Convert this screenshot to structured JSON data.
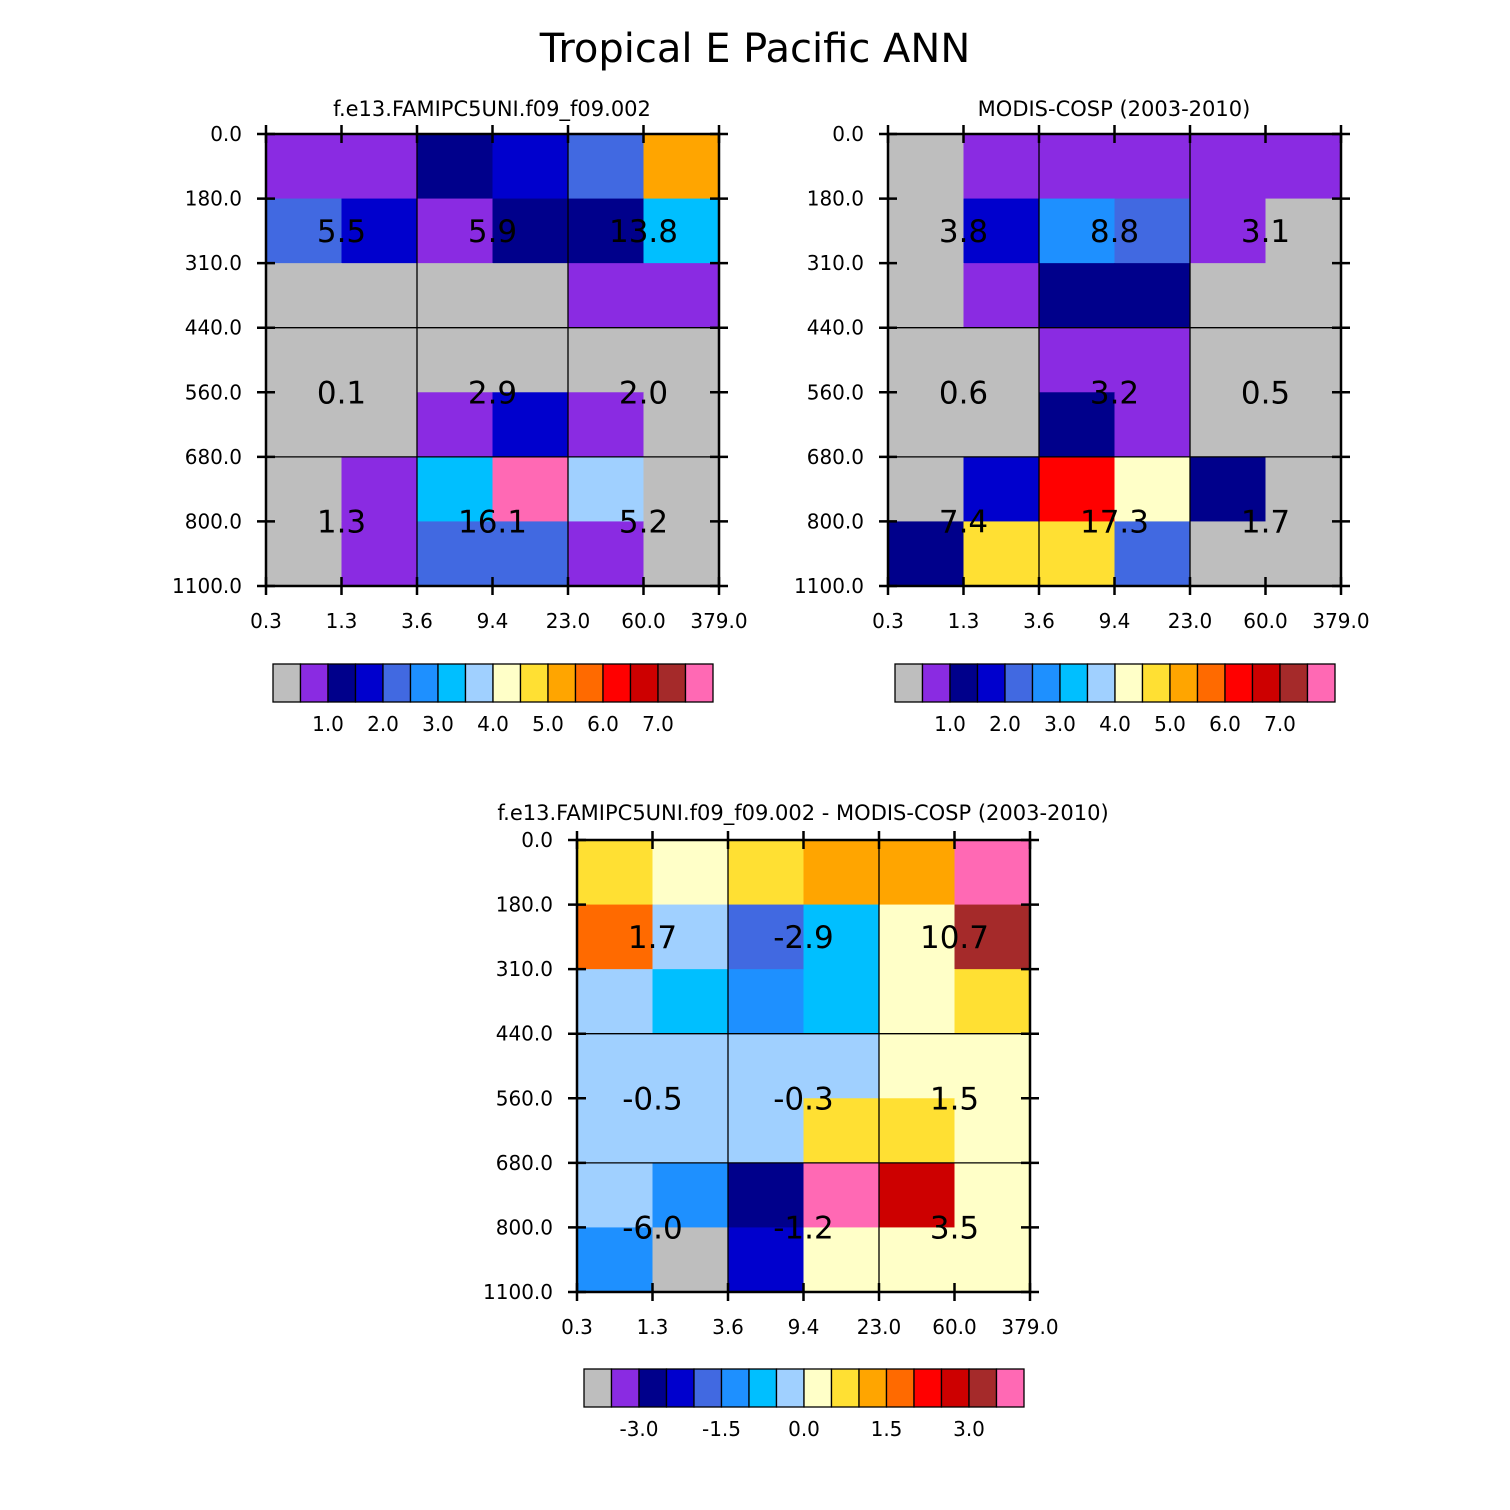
{
  "page_title": "Tropical E Pacific ANN",
  "tau_labels": [
    "0.3",
    "1.3",
    "3.6",
    "9.4",
    "23.0",
    "60.0",
    "379.0"
  ],
  "ctp_labels": [
    "0.0",
    "180.0",
    "310.0",
    "440.0",
    "560.0",
    "680.0",
    "800.0",
    "1100.0"
  ],
  "palette": [
    "#bebebe",
    "#8a2be2",
    "#00008b",
    "#0000cd",
    "#4169e1",
    "#1e90ff",
    "#00bfff",
    "#a0d0ff",
    "#ffffc8",
    "#ffe033",
    "#ffa500",
    "#ff6a00",
    "#ff0000",
    "#cd0000",
    "#a52a2a",
    "#ff69b4"
  ],
  "chart_data": [
    {
      "type": "heatmap",
      "title": "f.e13.FAMIPC5UNI.f09_f09.002",
      "xlabel": "",
      "ylabel": "",
      "colorbar_labels": [
        "1.0",
        "2.0",
        "3.0",
        "4.0",
        "5.0",
        "6.0",
        "7.0"
      ],
      "cells": [
        [
          1,
          1,
          2,
          3,
          4,
          10
        ],
        [
          4,
          3,
          1,
          2,
          2,
          6
        ],
        [
          0,
          0,
          0,
          0,
          1,
          1
        ],
        [
          0,
          0,
          0,
          0,
          0,
          0
        ],
        [
          0,
          0,
          1,
          3,
          1,
          0
        ],
        [
          0,
          1,
          6,
          15,
          7,
          0
        ],
        [
          0,
          1,
          4,
          4,
          1,
          0
        ]
      ],
      "annotations": [
        [
          "5.5",
          "5.9",
          "13.8"
        ],
        [
          "0.1",
          "2.9",
          "2.0"
        ],
        [
          "1.3",
          "16.1",
          "5.2"
        ]
      ]
    },
    {
      "type": "heatmap",
      "title": "MODIS-COSP (2003-2010)",
      "xlabel": "",
      "ylabel": "",
      "colorbar_labels": [
        "1.0",
        "2.0",
        "3.0",
        "4.0",
        "5.0",
        "6.0",
        "7.0"
      ],
      "cells": [
        [
          0,
          1,
          1,
          1,
          1,
          1
        ],
        [
          0,
          3,
          5,
          4,
          1,
          0
        ],
        [
          0,
          1,
          2,
          2,
          0,
          0
        ],
        [
          0,
          0,
          1,
          1,
          0,
          0
        ],
        [
          0,
          0,
          2,
          1,
          0,
          0
        ],
        [
          0,
          3,
          12,
          8,
          2,
          0
        ],
        [
          2,
          9,
          9,
          4,
          0,
          0
        ]
      ],
      "annotations": [
        [
          "3.8",
          "8.8",
          "3.1"
        ],
        [
          "0.6",
          "3.2",
          "0.5"
        ],
        [
          "7.4",
          "17.3",
          "1.7"
        ]
      ]
    },
    {
      "type": "heatmap",
      "title": "f.e13.FAMIPC5UNI.f09_f09.002 - MODIS-COSP (2003-2010)",
      "xlabel": "",
      "ylabel": "",
      "colorbar_labels": [
        "-3.0",
        "-1.5",
        "0.0",
        "1.5",
        "3.0"
      ],
      "cells": [
        [
          9,
          8,
          9,
          10,
          10,
          15
        ],
        [
          11,
          7,
          4,
          6,
          8,
          14
        ],
        [
          7,
          6,
          5,
          6,
          8,
          9
        ],
        [
          7,
          7,
          7,
          7,
          8,
          8
        ],
        [
          7,
          7,
          7,
          9,
          9,
          8
        ],
        [
          7,
          5,
          2,
          15,
          13,
          8
        ],
        [
          5,
          0,
          3,
          8,
          8,
          8
        ]
      ],
      "annotations": [
        [
          "1.7",
          "-2.9",
          "10.7"
        ],
        [
          "-0.5",
          "-0.3",
          "1.5"
        ],
        [
          "-6.0",
          "-1.2",
          "3.5"
        ]
      ]
    }
  ]
}
